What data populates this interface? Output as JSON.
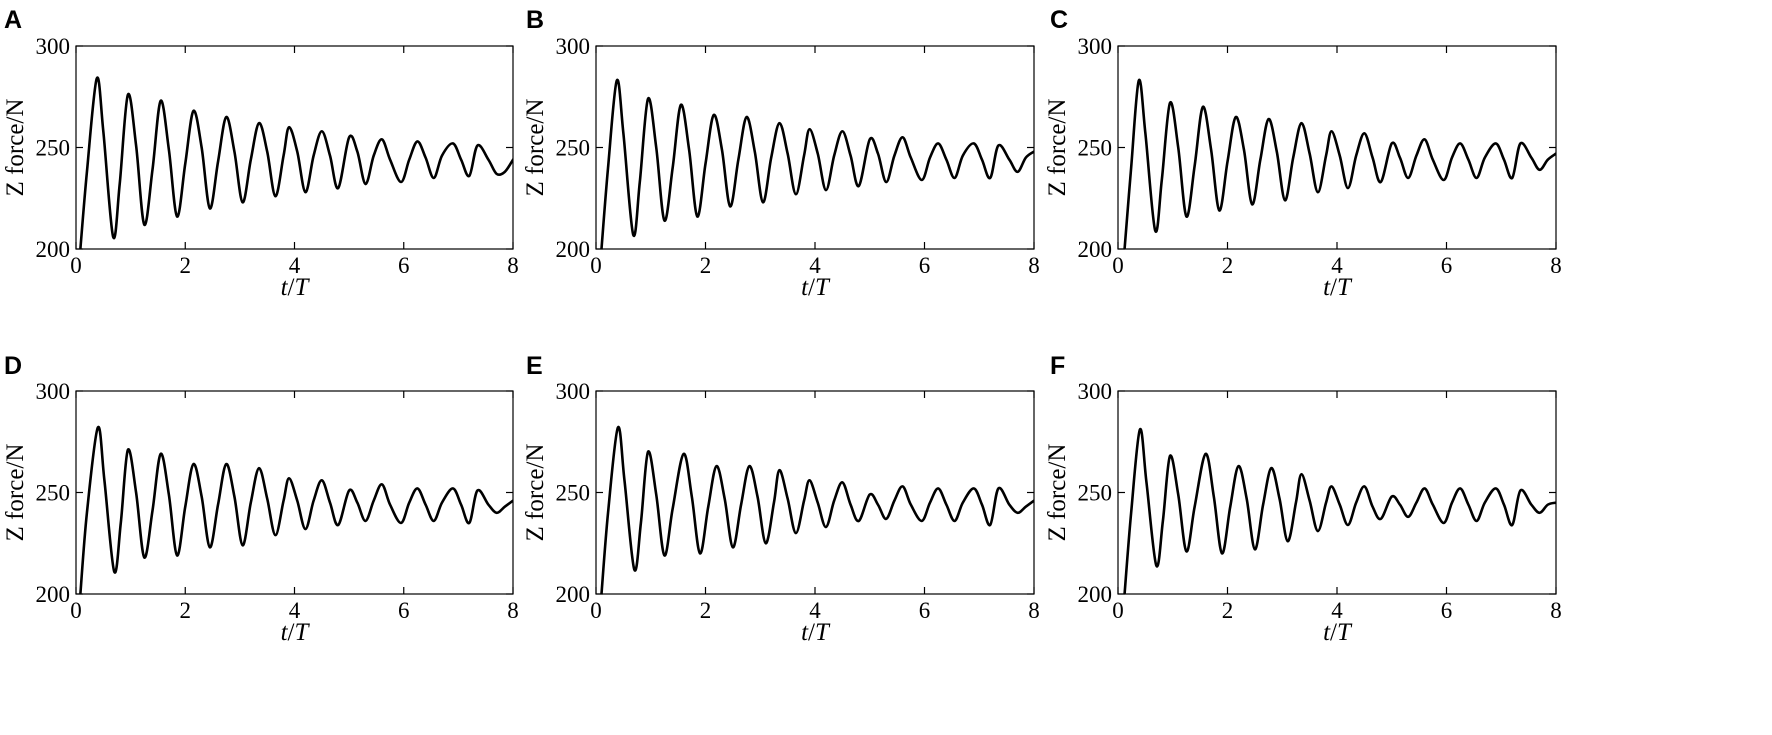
{
  "chart_data": [
    {
      "panel": "A",
      "type": "line",
      "xlabel": "t/T",
      "ylabel": "Z force/N",
      "xlim": [
        0,
        8
      ],
      "ylim": [
        200,
        300
      ],
      "xticks": [
        0,
        2,
        4,
        6,
        8
      ],
      "yticks": [
        200,
        250,
        300
      ],
      "grid": false,
      "frame": "box",
      "series": [
        {
          "x": [
            0.08,
            0.2,
            0.38,
            0.5,
            0.68,
            0.8,
            0.95,
            1.1,
            1.25,
            1.4,
            1.55,
            1.7,
            1.85,
            2.0,
            2.15,
            2.3,
            2.45,
            2.6,
            2.75,
            2.9,
            3.05,
            3.2,
            3.35,
            3.5,
            3.65,
            3.8,
            3.9,
            4.05,
            4.2,
            4.35,
            4.5,
            4.65,
            4.8,
            5.0,
            5.15,
            5.3,
            5.45,
            5.6,
            5.75,
            5.95,
            6.1,
            6.25,
            6.4,
            6.55,
            6.7,
            6.9,
            7.05,
            7.2,
            7.35,
            7.55,
            7.7,
            7.85,
            8.0
          ],
          "y": [
            200,
            238,
            284,
            258,
            206,
            232,
            276,
            251,
            212,
            239,
            273,
            249,
            216,
            242,
            268,
            250,
            220,
            243,
            265,
            248,
            223,
            244,
            262,
            248,
            226,
            246,
            260,
            248,
            228,
            246,
            258,
            246,
            230,
            255,
            248,
            232,
            246,
            254,
            244,
            233,
            244,
            253,
            245,
            235,
            246,
            252,
            244,
            236,
            251,
            244,
            237,
            238,
            244
          ]
        }
      ]
    },
    {
      "panel": "B",
      "type": "line",
      "xlabel": "t/T",
      "ylabel": "Z force/N",
      "xlim": [
        0,
        8
      ],
      "ylim": [
        200,
        300
      ],
      "xticks": [
        0,
        2,
        4,
        6,
        8
      ],
      "yticks": [
        200,
        250,
        300
      ],
      "grid": false,
      "frame": "box",
      "series": [
        {
          "x": [
            0.1,
            0.22,
            0.38,
            0.5,
            0.68,
            0.8,
            0.95,
            1.1,
            1.25,
            1.4,
            1.55,
            1.7,
            1.85,
            2.0,
            2.15,
            2.3,
            2.45,
            2.6,
            2.75,
            2.9,
            3.05,
            3.2,
            3.35,
            3.5,
            3.65,
            3.8,
            3.9,
            4.05,
            4.2,
            4.35,
            4.5,
            4.65,
            4.8,
            5.0,
            5.15,
            5.3,
            5.45,
            5.6,
            5.75,
            5.95,
            6.1,
            6.25,
            6.4,
            6.55,
            6.7,
            6.9,
            7.05,
            7.2,
            7.35,
            7.55,
            7.7,
            7.85,
            8.0
          ],
          "y": [
            200,
            240,
            283,
            257,
            207,
            233,
            274,
            250,
            214,
            240,
            271,
            249,
            216,
            242,
            266,
            249,
            221,
            244,
            265,
            248,
            223,
            245,
            262,
            247,
            227,
            246,
            259,
            247,
            229,
            246,
            258,
            246,
            231,
            254,
            247,
            233,
            246,
            255,
            245,
            234,
            245,
            252,
            244,
            235,
            246,
            252,
            244,
            235,
            251,
            244,
            238,
            245,
            248
          ]
        }
      ]
    },
    {
      "panel": "C",
      "type": "line",
      "xlabel": "t/T",
      "ylabel": "Z force/N",
      "xlim": [
        0,
        8
      ],
      "ylim": [
        200,
        300
      ],
      "xticks": [
        0,
        2,
        4,
        6,
        8
      ],
      "yticks": [
        200,
        250,
        300
      ],
      "grid": false,
      "frame": "box",
      "series": [
        {
          "x": [
            0.12,
            0.24,
            0.38,
            0.5,
            0.68,
            0.8,
            0.95,
            1.1,
            1.25,
            1.4,
            1.55,
            1.7,
            1.85,
            2.0,
            2.15,
            2.3,
            2.45,
            2.6,
            2.75,
            2.9,
            3.05,
            3.2,
            3.35,
            3.5,
            3.65,
            3.8,
            3.9,
            4.05,
            4.2,
            4.35,
            4.5,
            4.65,
            4.8,
            5.0,
            5.15,
            5.3,
            5.45,
            5.6,
            5.75,
            5.95,
            6.1,
            6.25,
            6.4,
            6.55,
            6.7,
            6.9,
            7.05,
            7.2,
            7.35,
            7.55,
            7.7,
            7.85,
            8.0
          ],
          "y": [
            200,
            240,
            283,
            257,
            209,
            234,
            272,
            250,
            216,
            241,
            270,
            249,
            219,
            243,
            265,
            249,
            222,
            244,
            264,
            248,
            224,
            245,
            262,
            247,
            228,
            246,
            258,
            246,
            230,
            246,
            257,
            245,
            233,
            252,
            245,
            235,
            246,
            254,
            244,
            234,
            245,
            252,
            244,
            235,
            245,
            252,
            244,
            235,
            252,
            245,
            239,
            244,
            247
          ]
        }
      ]
    },
    {
      "panel": "D",
      "type": "line",
      "xlabel": "t/T",
      "ylabel": "Z force/N",
      "xlim": [
        0,
        8
      ],
      "ylim": [
        200,
        300
      ],
      "xticks": [
        0,
        2,
        4,
        6,
        8
      ],
      "yticks": [
        200,
        250,
        300
      ],
      "grid": false,
      "frame": "box",
      "series": [
        {
          "x": [
            0.08,
            0.2,
            0.4,
            0.52,
            0.7,
            0.82,
            0.95,
            1.1,
            1.25,
            1.4,
            1.55,
            1.7,
            1.85,
            2.0,
            2.15,
            2.3,
            2.45,
            2.6,
            2.75,
            2.9,
            3.05,
            3.2,
            3.35,
            3.5,
            3.65,
            3.8,
            3.9,
            4.05,
            4.2,
            4.35,
            4.5,
            4.65,
            4.8,
            5.0,
            5.15,
            5.3,
            5.45,
            5.6,
            5.75,
            5.95,
            6.1,
            6.25,
            6.4,
            6.55,
            6.7,
            6.9,
            7.05,
            7.2,
            7.35,
            7.55,
            7.7,
            7.85,
            8.0
          ],
          "y": [
            200,
            240,
            282,
            256,
            211,
            235,
            271,
            250,
            218,
            241,
            269,
            249,
            219,
            243,
            264,
            248,
            223,
            244,
            264,
            248,
            224,
            245,
            262,
            247,
            229,
            246,
            257,
            246,
            232,
            246,
            256,
            245,
            234,
            251,
            245,
            236,
            246,
            254,
            244,
            235,
            245,
            252,
            244,
            236,
            245,
            252,
            244,
            235,
            251,
            244,
            240,
            243,
            246
          ]
        }
      ]
    },
    {
      "panel": "E",
      "type": "line",
      "xlabel": "t/T",
      "ylabel": "Z force/N",
      "xlim": [
        0,
        8
      ],
      "ylim": [
        200,
        300
      ],
      "xticks": [
        0,
        2,
        4,
        6,
        8
      ],
      "yticks": [
        200,
        250,
        300
      ],
      "grid": false,
      "frame": "box",
      "series": [
        {
          "x": [
            0.1,
            0.22,
            0.4,
            0.52,
            0.7,
            0.82,
            0.95,
            1.1,
            1.25,
            1.4,
            1.6,
            1.75,
            1.9,
            2.05,
            2.2,
            2.35,
            2.5,
            2.65,
            2.8,
            2.95,
            3.1,
            3.25,
            3.35,
            3.5,
            3.65,
            3.8,
            3.9,
            4.05,
            4.2,
            4.35,
            4.5,
            4.65,
            4.8,
            5.0,
            5.15,
            5.3,
            5.45,
            5.6,
            5.75,
            5.95,
            6.1,
            6.25,
            6.4,
            6.55,
            6.7,
            6.9,
            7.05,
            7.2,
            7.35,
            7.55,
            7.7,
            7.85,
            8.0
          ],
          "y": [
            200,
            240,
            282,
            256,
            212,
            235,
            270,
            249,
            219,
            242,
            269,
            248,
            220,
            243,
            263,
            247,
            223,
            244,
            263,
            248,
            225,
            245,
            261,
            247,
            230,
            246,
            256,
            245,
            233,
            246,
            255,
            244,
            236,
            249,
            244,
            237,
            246,
            253,
            244,
            236,
            245,
            252,
            244,
            236,
            245,
            252,
            244,
            234,
            252,
            244,
            240,
            243,
            246
          ]
        }
      ]
    },
    {
      "panel": "F",
      "type": "line",
      "xlabel": "t/T",
      "ylabel": "Z force/N",
      "xlim": [
        0,
        8
      ],
      "ylim": [
        200,
        300
      ],
      "xticks": [
        0,
        2,
        4,
        6,
        8
      ],
      "yticks": [
        200,
        250,
        300
      ],
      "grid": false,
      "frame": "box",
      "series": [
        {
          "x": [
            0.12,
            0.24,
            0.4,
            0.52,
            0.7,
            0.82,
            0.95,
            1.1,
            1.25,
            1.4,
            1.6,
            1.75,
            1.9,
            2.05,
            2.2,
            2.35,
            2.5,
            2.65,
            2.8,
            2.95,
            3.1,
            3.25,
            3.35,
            3.5,
            3.65,
            3.8,
            3.9,
            4.05,
            4.2,
            4.35,
            4.5,
            4.65,
            4.8,
            5.0,
            5.15,
            5.3,
            5.45,
            5.6,
            5.75,
            5.95,
            6.1,
            6.25,
            6.4,
            6.55,
            6.7,
            6.9,
            7.05,
            7.2,
            7.35,
            7.55,
            7.7,
            7.85,
            8.0
          ],
          "y": [
            200,
            240,
            281,
            255,
            214,
            236,
            268,
            249,
            221,
            243,
            269,
            248,
            220,
            243,
            263,
            247,
            222,
            244,
            262,
            247,
            226,
            245,
            259,
            246,
            231,
            245,
            253,
            244,
            234,
            245,
            253,
            243,
            237,
            248,
            244,
            238,
            245,
            252,
            244,
            235,
            245,
            252,
            244,
            236,
            245,
            252,
            244,
            234,
            251,
            244,
            240,
            244,
            245
          ]
        }
      ]
    }
  ]
}
